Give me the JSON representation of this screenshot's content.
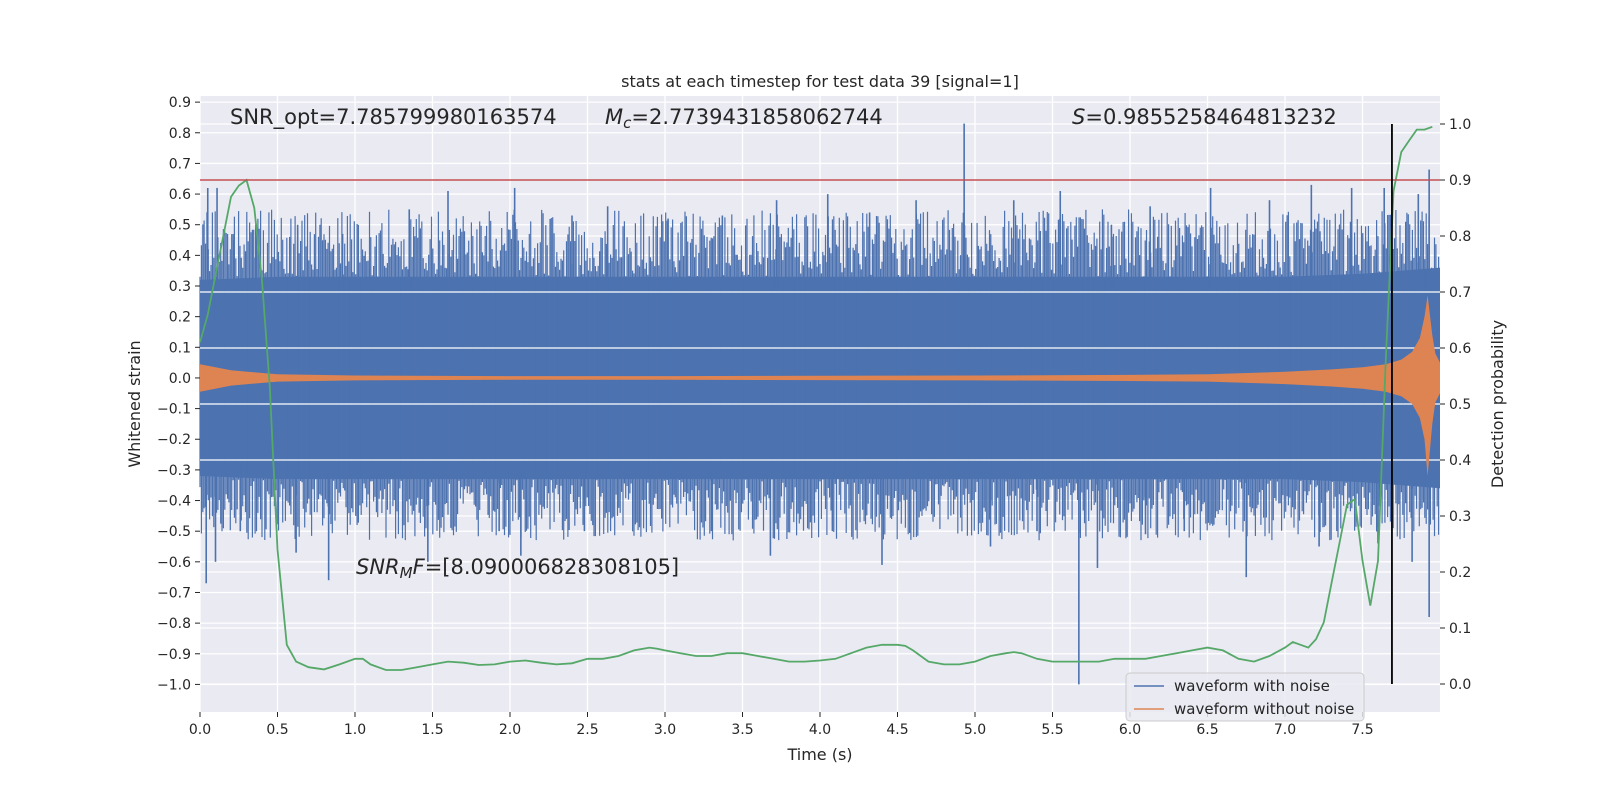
{
  "chart_data": {
    "type": "line",
    "title": "stats at each timestep for test data 39 [signal=1]",
    "xlabel": "Time (s)",
    "ylabel": "Whitened strain",
    "y2label": "Detection probability",
    "xlim": [
      0.0,
      8.0
    ],
    "ylim": [
      -1.09,
      0.92
    ],
    "y2lim": [
      -0.05,
      1.05
    ],
    "xticks": [
      "0.0",
      "0.5",
      "1.0",
      "1.5",
      "2.0",
      "2.5",
      "3.0",
      "3.5",
      "4.0",
      "4.5",
      "5.0",
      "5.5",
      "6.0",
      "6.5",
      "7.0",
      "7.5"
    ],
    "yticks": [
      "0.9",
      "0.8",
      "0.7",
      "0.6",
      "0.5",
      "0.4",
      "0.3",
      "0.2",
      "0.1",
      "0.0",
      "−0.1",
      "−0.2",
      "−0.3",
      "−0.4",
      "−0.5",
      "−0.6",
      "−0.7",
      "−0.8",
      "−0.9",
      "−1.0"
    ],
    "y2ticks": [
      "1.0",
      "0.9",
      "0.8",
      "0.7",
      "0.6",
      "0.5",
      "0.4",
      "0.3",
      "0.2",
      "0.1",
      "0.0"
    ],
    "grid": true,
    "legend": "lower-right",
    "background": "#eaeaf2",
    "annotations": {
      "snr_opt": "SNR_opt=7.785799980163574",
      "mc_symbol": "M",
      "mc_sub": "c",
      "mc_value": "=2.7739431858062744",
      "s_symbol": "S",
      "s_value": "=0.9855258464813232",
      "snrmf_symbol": "SNR",
      "snrmf_sub": "M",
      "snrmf_f": "F",
      "snrmf_value": "=[8.090006828308105]"
    },
    "threshold_probability": 0.9,
    "detection_time": 7.69,
    "series": [
      {
        "name": "waveform with noise",
        "color": "#4c72b0",
        "axis": "left",
        "envelope": {
          "x": [
            0.0,
            0.5,
            1.0,
            1.5,
            2.0,
            2.5,
            3.0,
            3.5,
            4.0,
            4.5,
            5.0,
            5.5,
            6.0,
            6.5,
            7.0,
            7.5,
            8.0
          ],
          "upper": [
            0.32,
            0.33,
            0.33,
            0.33,
            0.33,
            0.33,
            0.33,
            0.33,
            0.33,
            0.33,
            0.33,
            0.33,
            0.33,
            0.33,
            0.33,
            0.34,
            0.36
          ],
          "lower": [
            -0.32,
            -0.33,
            -0.33,
            -0.33,
            -0.33,
            -0.33,
            -0.33,
            -0.33,
            -0.33,
            -0.33,
            -0.33,
            -0.33,
            -0.33,
            -0.33,
            -0.33,
            -0.34,
            -0.36
          ]
        },
        "spikes_up": [
          {
            "x": 0.05,
            "y": 0.62
          },
          {
            "x": 0.11,
            "y": 0.62
          },
          {
            "x": 0.22,
            "y": 0.45
          },
          {
            "x": 0.36,
            "y": 0.5
          },
          {
            "x": 0.63,
            "y": 0.5
          },
          {
            "x": 0.92,
            "y": 0.47
          },
          {
            "x": 1.35,
            "y": 0.55
          },
          {
            "x": 1.6,
            "y": 0.61
          },
          {
            "x": 2.03,
            "y": 0.62
          },
          {
            "x": 2.4,
            "y": 0.53
          },
          {
            "x": 2.63,
            "y": 0.56
          },
          {
            "x": 3.02,
            "y": 0.52
          },
          {
            "x": 3.37,
            "y": 0.53
          },
          {
            "x": 3.72,
            "y": 0.58
          },
          {
            "x": 4.05,
            "y": 0.6
          },
          {
            "x": 4.32,
            "y": 0.54
          },
          {
            "x": 4.62,
            "y": 0.58
          },
          {
            "x": 4.93,
            "y": 0.83
          },
          {
            "x": 5.25,
            "y": 0.58
          },
          {
            "x": 5.55,
            "y": 0.61
          },
          {
            "x": 5.88,
            "y": 0.5
          },
          {
            "x": 6.13,
            "y": 0.56
          },
          {
            "x": 6.52,
            "y": 0.62
          },
          {
            "x": 6.9,
            "y": 0.58
          },
          {
            "x": 7.17,
            "y": 0.63
          },
          {
            "x": 7.43,
            "y": 0.62
          },
          {
            "x": 7.64,
            "y": 0.62
          },
          {
            "x": 7.86,
            "y": 0.6
          },
          {
            "x": 7.93,
            "y": 0.68
          }
        ],
        "spikes_down": [
          {
            "x": 0.04,
            "y": -0.67
          },
          {
            "x": 0.1,
            "y": -0.6
          },
          {
            "x": 0.26,
            "y": -0.5
          },
          {
            "x": 0.62,
            "y": -0.57
          },
          {
            "x": 0.83,
            "y": -0.66
          },
          {
            "x": 1.47,
            "y": -0.6
          },
          {
            "x": 1.93,
            "y": -0.5
          },
          {
            "x": 2.07,
            "y": -0.58
          },
          {
            "x": 2.48,
            "y": -0.5
          },
          {
            "x": 3.3,
            "y": -0.5
          },
          {
            "x": 3.68,
            "y": -0.58
          },
          {
            "x": 4.08,
            "y": -0.5
          },
          {
            "x": 4.4,
            "y": -0.61
          },
          {
            "x": 5.1,
            "y": -0.55
          },
          {
            "x": 5.4,
            "y": -0.5
          },
          {
            "x": 5.67,
            "y": -1.0
          },
          {
            "x": 5.79,
            "y": -0.62
          },
          {
            "x": 6.1,
            "y": -0.51
          },
          {
            "x": 6.35,
            "y": -0.5
          },
          {
            "x": 6.75,
            "y": -0.65
          },
          {
            "x": 7.22,
            "y": -0.55
          },
          {
            "x": 7.6,
            "y": -0.54
          },
          {
            "x": 7.82,
            "y": -0.6
          },
          {
            "x": 7.93,
            "y": -0.78
          }
        ]
      },
      {
        "name": "waveform without noise",
        "color": "#dd8452",
        "axis": "left",
        "envelope": {
          "x": [
            0.0,
            0.2,
            0.5,
            1.0,
            2.0,
            3.0,
            4.0,
            5.0,
            6.0,
            6.5,
            7.0,
            7.3,
            7.5,
            7.65,
            7.75,
            7.82,
            7.87,
            7.9,
            7.92,
            7.95,
            7.97,
            8.0
          ],
          "upper": [
            0.045,
            0.025,
            0.012,
            0.008,
            0.006,
            0.006,
            0.007,
            0.008,
            0.01,
            0.012,
            0.02,
            0.028,
            0.035,
            0.045,
            0.06,
            0.085,
            0.13,
            0.2,
            0.27,
            0.14,
            0.08,
            0.05
          ],
          "lower": [
            -0.045,
            -0.025,
            -0.012,
            -0.008,
            -0.006,
            -0.006,
            -0.007,
            -0.008,
            -0.01,
            -0.012,
            -0.02,
            -0.028,
            -0.035,
            -0.045,
            -0.06,
            -0.085,
            -0.13,
            -0.2,
            -0.32,
            -0.15,
            -0.08,
            -0.05
          ]
        }
      },
      {
        "name": "detection probability",
        "color": "#55a868",
        "axis": "right",
        "x": [
          0.0,
          0.05,
          0.1,
          0.15,
          0.2,
          0.25,
          0.3,
          0.35,
          0.4,
          0.45,
          0.5,
          0.56,
          0.62,
          0.7,
          0.8,
          0.9,
          1.0,
          1.05,
          1.1,
          1.2,
          1.3,
          1.4,
          1.5,
          1.6,
          1.7,
          1.8,
          1.9,
          2.0,
          2.1,
          2.2,
          2.3,
          2.4,
          2.5,
          2.6,
          2.7,
          2.8,
          2.9,
          2.95,
          3.0,
          3.1,
          3.2,
          3.3,
          3.4,
          3.5,
          3.6,
          3.7,
          3.8,
          3.9,
          4.0,
          4.1,
          4.2,
          4.3,
          4.4,
          4.5,
          4.55,
          4.6,
          4.7,
          4.8,
          4.9,
          5.0,
          5.1,
          5.2,
          5.25,
          5.3,
          5.4,
          5.5,
          5.6,
          5.7,
          5.8,
          5.9,
          6.0,
          6.1,
          6.2,
          6.3,
          6.4,
          6.5,
          6.6,
          6.7,
          6.8,
          6.9,
          7.0,
          7.05,
          7.1,
          7.15,
          7.2,
          7.25,
          7.3,
          7.35,
          7.4,
          7.45,
          7.5,
          7.55,
          7.6,
          7.65,
          7.7,
          7.75,
          7.8,
          7.85,
          7.9,
          7.95
        ],
        "y": [
          0.61,
          0.66,
          0.73,
          0.8,
          0.87,
          0.89,
          0.9,
          0.85,
          0.72,
          0.53,
          0.24,
          0.07,
          0.04,
          0.03,
          0.026,
          0.035,
          0.045,
          0.045,
          0.035,
          0.025,
          0.025,
          0.03,
          0.035,
          0.04,
          0.038,
          0.034,
          0.035,
          0.04,
          0.042,
          0.038,
          0.035,
          0.037,
          0.045,
          0.045,
          0.05,
          0.06,
          0.065,
          0.063,
          0.06,
          0.055,
          0.05,
          0.05,
          0.055,
          0.055,
          0.05,
          0.045,
          0.04,
          0.04,
          0.042,
          0.045,
          0.055,
          0.065,
          0.07,
          0.07,
          0.068,
          0.06,
          0.04,
          0.035,
          0.035,
          0.04,
          0.05,
          0.055,
          0.057,
          0.055,
          0.045,
          0.04,
          0.04,
          0.04,
          0.04,
          0.045,
          0.045,
          0.045,
          0.05,
          0.055,
          0.06,
          0.065,
          0.06,
          0.045,
          0.04,
          0.05,
          0.065,
          0.075,
          0.07,
          0.065,
          0.08,
          0.11,
          0.18,
          0.25,
          0.32,
          0.33,
          0.22,
          0.14,
          0.22,
          0.58,
          0.88,
          0.95,
          0.97,
          0.99,
          0.99,
          0.995
        ]
      }
    ]
  }
}
